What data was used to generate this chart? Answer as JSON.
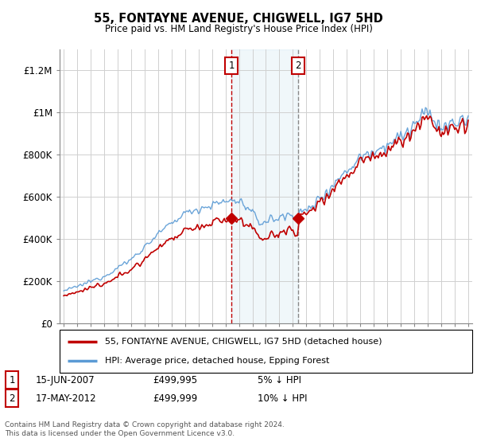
{
  "title": "55, FONTAYNE AVENUE, CHIGWELL, IG7 5HD",
  "subtitle": "Price paid vs. HM Land Registry's House Price Index (HPI)",
  "ylabel_ticks": [
    "£0",
    "£200K",
    "£400K",
    "£600K",
    "£800K",
    "£1M",
    "£1.2M"
  ],
  "ytick_vals": [
    0,
    200000,
    400000,
    600000,
    800000,
    1000000,
    1200000
  ],
  "ylim": [
    0,
    1300000
  ],
  "xlim_start": 1994.7,
  "xlim_end": 2025.3,
  "hpi_color": "#5b9bd5",
  "property_color": "#c00000",
  "background_color": "#ffffff",
  "grid_color": "#d0d0d0",
  "transaction1_x": 2007.45,
  "transaction1_y": 499995,
  "transaction2_x": 2012.37,
  "transaction2_y": 499999,
  "shade_start": 2007.45,
  "shade_end": 2012.37,
  "legend_property": "55, FONTAYNE AVENUE, CHIGWELL, IG7 5HD (detached house)",
  "legend_hpi": "HPI: Average price, detached house, Epping Forest",
  "note1_label": "1",
  "note1_date": "15-JUN-2007",
  "note1_price": "£499,995",
  "note1_hpi": "5% ↓ HPI",
  "note2_label": "2",
  "note2_date": "17-MAY-2012",
  "note2_price": "£499,999",
  "note2_hpi": "10% ↓ HPI",
  "footer": "Contains HM Land Registry data © Crown copyright and database right 2024.\nThis data is licensed under the Open Government Licence v3.0."
}
